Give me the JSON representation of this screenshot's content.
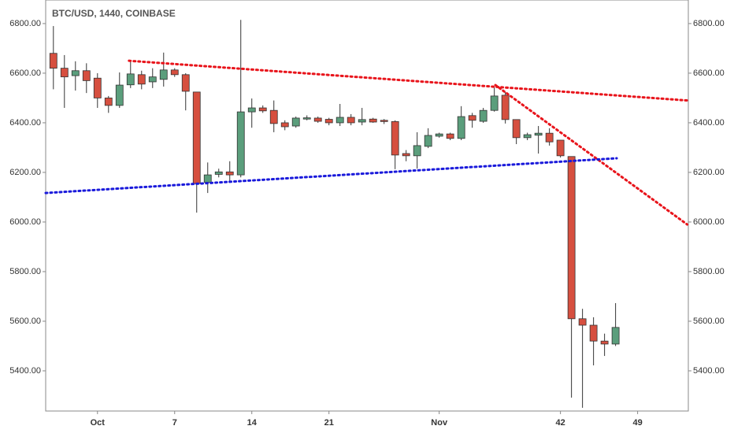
{
  "chart_data": {
    "type": "candlestick",
    "title": "BTC/USD, 1440, COINBASE",
    "x": [
      -4,
      -3,
      -2,
      -1,
      0,
      1,
      2,
      3,
      4,
      5,
      6,
      7,
      8,
      9,
      10,
      11,
      12,
      13,
      14,
      15,
      16,
      17,
      18,
      19,
      20,
      21,
      22,
      23,
      24,
      25,
      26,
      27,
      28,
      29,
      30,
      31,
      32,
      33,
      34,
      35,
      36,
      37,
      38,
      39,
      40,
      41,
      42,
      43,
      44,
      45,
      46,
      47
    ],
    "open": [
      6680,
      6620,
      6590,
      6610,
      6580,
      6500,
      6470,
      6553,
      6594,
      6565,
      6575,
      6613,
      6594,
      6524,
      6160,
      6192,
      6202,
      6190,
      6444,
      6460,
      6450,
      6400,
      6387,
      6415,
      6419,
      6414,
      6400,
      6422,
      6403,
      6415,
      6410,
      6405,
      6276,
      6267,
      6305,
      6346,
      6355,
      6337,
      6429,
      6406,
      6450,
      6511,
      6413,
      6340,
      6350,
      6358,
      6330,
      6264,
      5610,
      5584,
      5520,
      5508
    ],
    "high": [
      6790,
      6673,
      6648,
      6640,
      6600,
      6508,
      6603,
      6648,
      6610,
      6620,
      6683,
      6620,
      6600,
      6525,
      6240,
      6215,
      6245,
      6815,
      6498,
      6470,
      6490,
      6410,
      6425,
      6430,
      6425,
      6420,
      6476,
      6435,
      6460,
      6420,
      6415,
      6410,
      6290,
      6362,
      6378,
      6360,
      6360,
      6467,
      6440,
      6460,
      6546,
      6524,
      6413,
      6360,
      6387,
      6378,
      6330,
      6264,
      5650,
      5616,
      5550,
      5673
    ],
    "low": [
      6535,
      6460,
      6530,
      6520,
      6460,
      6440,
      6460,
      6540,
      6535,
      6540,
      6546,
      6585,
      6450,
      6038,
      6117,
      6180,
      6160,
      6180,
      6380,
      6440,
      6362,
      6370,
      6380,
      6410,
      6400,
      6390,
      6387,
      6390,
      6390,
      6400,
      6395,
      6213,
      6245,
      6215,
      6298,
      6340,
      6330,
      6330,
      6380,
      6400,
      6445,
      6397,
      6314,
      6330,
      6276,
      6308,
      6260,
      5292,
      5251,
      5422,
      5460,
      5500
    ],
    "close": [
      6620,
      6585,
      6610,
      6570,
      6500,
      6470,
      6552,
      6597,
      6556,
      6585,
      6613,
      6594,
      6527,
      6155,
      6190,
      6202,
      6190,
      6444,
      6460,
      6448,
      6397,
      6384,
      6419,
      6420,
      6406,
      6400,
      6422,
      6400,
      6413,
      6403,
      6405,
      6270,
      6267,
      6308,
      6349,
      6355,
      6337,
      6425,
      6410,
      6450,
      6508,
      6413,
      6340,
      6352,
      6358,
      6323,
      6267,
      5610,
      5584,
      5520,
      5508,
      5575
    ],
    "up_color": "#5b9e7c",
    "down_color": "#d64f3f",
    "xlim": [
      -4.7,
      53.6
    ],
    "xticks": [
      {
        "value": 0,
        "label": "Oct"
      },
      7,
      14,
      21,
      {
        "value": 31,
        "label": "Nov"
      },
      42,
      49
    ],
    "ylim": [
      5238,
      6895
    ],
    "yticks": [
      {
        "value": 5400,
        "label": "5400.00"
      },
      {
        "value": 5600,
        "label": "5600.00"
      },
      {
        "value": 5800,
        "label": "5800.00"
      },
      {
        "value": 6000,
        "label": "6000.00"
      },
      {
        "value": 6200,
        "label": "6200.00"
      },
      {
        "value": 6400,
        "label": "6400.00"
      },
      {
        "value": 6600,
        "label": "6600.00"
      },
      {
        "value": 6800,
        "label": "6800.00"
      }
    ],
    "trend_lines": [
      {
        "color": "#e8141b",
        "x": [
          2.86,
          53.5
        ],
        "y": [
          6650,
          6490
        ]
      },
      {
        "color": "#e8141b",
        "x": [
          36.1,
          53.5
        ],
        "y": [
          6552,
          5990
        ]
      },
      {
        "color": "#1a1adb",
        "x": [
          -4.7,
          47.1
        ],
        "y": [
          6117,
          6257
        ]
      }
    ]
  }
}
